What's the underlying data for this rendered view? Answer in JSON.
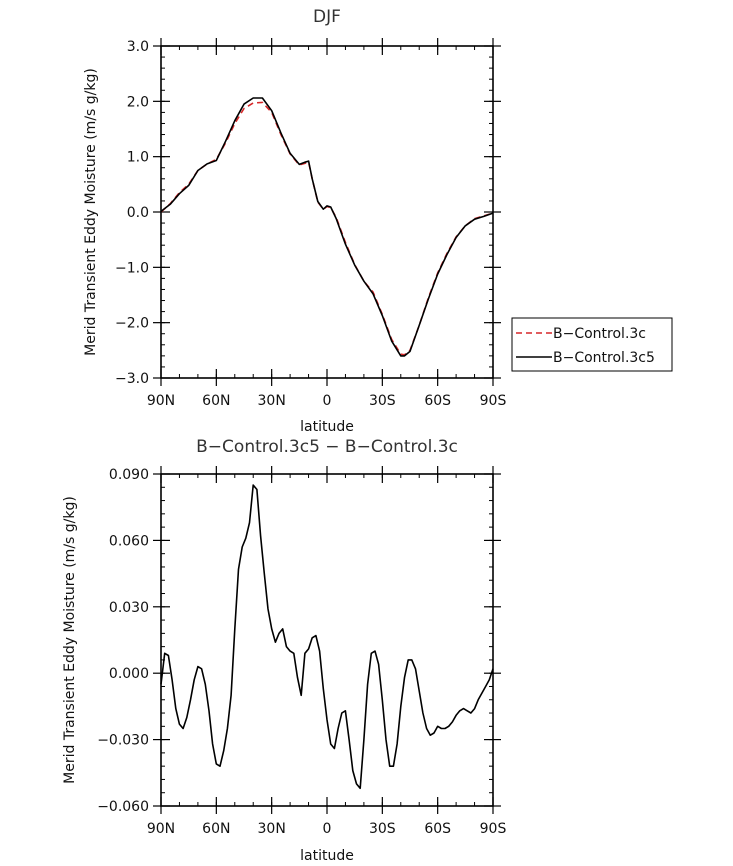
{
  "chart_data": [
    {
      "type": "line",
      "title": "DJF",
      "xlabel": "latitude",
      "ylabel": "Merid Transient Eddy Moisture (m/s g/kg)",
      "xlim": [
        -90,
        90
      ],
      "ylim": [
        -3.0,
        3.0
      ],
      "x_ticks": [
        -90,
        -60,
        -30,
        0,
        30,
        60,
        90
      ],
      "x_tick_labels": [
        "90N",
        "60N",
        "30N",
        "0",
        "30S",
        "60S",
        "90S"
      ],
      "y_ticks": [
        -3,
        -2,
        -1,
        0,
        1,
        2,
        3
      ],
      "y_tick_labels": [
        "−3.0",
        "−2.0",
        "−1.0",
        "0.0",
        "1.0",
        "2.0",
        "3.0"
      ],
      "legend_position": "right",
      "series": [
        {
          "name": "B−Control.3c",
          "color": "#d62728",
          "dash": "dashed",
          "x": [
            -90,
            -85,
            -80,
            -75,
            -70,
            -65,
            -60,
            -55,
            -50,
            -45,
            -40,
            -35,
            -30,
            -25,
            -20,
            -15,
            -12,
            -10,
            -8,
            -5,
            -2,
            0,
            2,
            5,
            10,
            15,
            20,
            25,
            30,
            35,
            40,
            42,
            45,
            50,
            55,
            60,
            65,
            70,
            75,
            80,
            85,
            90
          ],
          "y": [
            0.0,
            0.15,
            0.35,
            0.5,
            0.75,
            0.87,
            0.95,
            1.25,
            1.6,
            1.87,
            1.97,
            1.98,
            1.8,
            1.4,
            1.05,
            0.85,
            0.88,
            0.9,
            0.6,
            0.18,
            0.05,
            0.1,
            0.08,
            -0.1,
            -0.55,
            -0.95,
            -1.25,
            -1.45,
            -1.85,
            -2.3,
            -2.57,
            -2.58,
            -2.5,
            -2.05,
            -1.55,
            -1.1,
            -0.75,
            -0.45,
            -0.25,
            -0.12,
            -0.07,
            -0.02
          ]
        },
        {
          "name": "B−Control.3c5",
          "color": "#000000",
          "dash": "solid",
          "x": [
            -90,
            -85,
            -80,
            -75,
            -70,
            -65,
            -60,
            -55,
            -50,
            -45,
            -40,
            -35,
            -30,
            -25,
            -20,
            -15,
            -12,
            -10,
            -8,
            -5,
            -2,
            0,
            2,
            5,
            10,
            15,
            20,
            25,
            30,
            35,
            40,
            42,
            45,
            50,
            55,
            60,
            65,
            70,
            75,
            80,
            85,
            90
          ],
          "y": [
            0.01,
            0.14,
            0.33,
            0.48,
            0.75,
            0.87,
            0.93,
            1.28,
            1.65,
            1.95,
            2.06,
            2.06,
            1.83,
            1.43,
            1.06,
            0.86,
            0.9,
            0.92,
            0.6,
            0.19,
            0.05,
            0.11,
            0.09,
            -0.12,
            -0.58,
            -0.96,
            -1.25,
            -1.48,
            -1.87,
            -2.33,
            -2.6,
            -2.6,
            -2.52,
            -2.05,
            -1.57,
            -1.12,
            -0.77,
            -0.46,
            -0.25,
            -0.13,
            -0.08,
            -0.02
          ]
        }
      ]
    },
    {
      "type": "line",
      "title": "B−Control.3c5 − B−Control.3c",
      "xlabel": "latitude",
      "ylabel": "Merid Transient Eddy Moisture (m/s g/kg)",
      "xlim": [
        -90,
        90
      ],
      "ylim": [
        -0.06,
        0.09
      ],
      "x_ticks": [
        -90,
        -60,
        -30,
        0,
        30,
        60,
        90
      ],
      "x_tick_labels": [
        "90N",
        "60N",
        "30N",
        "0",
        "30S",
        "60S",
        "90S"
      ],
      "y_ticks": [
        -0.06,
        -0.03,
        0.0,
        0.03,
        0.06,
        0.09
      ],
      "y_tick_labels": [
        "−0.060",
        "−0.030",
        "0.000",
        "0.030",
        "0.060",
        "0.090"
      ],
      "series": [
        {
          "color": "#000000",
          "x": [
            -90,
            -88,
            -86,
            -84,
            -82,
            -80,
            -78,
            -76,
            -74,
            -72,
            -70,
            -68,
            -66,
            -64,
            -62,
            -60,
            -58,
            -56,
            -54,
            -52,
            -50,
            -48,
            -46,
            -44,
            -42,
            -40,
            -38,
            -36,
            -34,
            -32,
            -30,
            -28,
            -26,
            -24,
            -22,
            -20,
            -18,
            -16,
            -14,
            -12,
            -10,
            -8,
            -6,
            -4,
            -2,
            0,
            2,
            4,
            6,
            8,
            10,
            12,
            14,
            16,
            18,
            20,
            22,
            24,
            26,
            28,
            30,
            32,
            34,
            36,
            38,
            40,
            42,
            44,
            46,
            48,
            50,
            52,
            54,
            56,
            58,
            60,
            62,
            64,
            66,
            68,
            70,
            72,
            74,
            76,
            78,
            80,
            82,
            84,
            86,
            88,
            90
          ],
          "y": [
            -0.005,
            0.009,
            0.008,
            -0.003,
            -0.016,
            -0.023,
            -0.025,
            -0.02,
            -0.012,
            -0.003,
            0.003,
            0.002,
            -0.005,
            -0.017,
            -0.032,
            -0.041,
            -0.042,
            -0.035,
            -0.025,
            -0.01,
            0.02,
            0.047,
            0.057,
            0.061,
            0.068,
            0.085,
            0.083,
            0.062,
            0.045,
            0.029,
            0.02,
            0.014,
            0.018,
            0.02,
            0.012,
            0.01,
            0.009,
            -0.002,
            -0.01,
            0.009,
            0.011,
            0.016,
            0.017,
            0.01,
            -0.007,
            -0.021,
            -0.032,
            -0.034,
            -0.025,
            -0.018,
            -0.017,
            -0.03,
            -0.044,
            -0.05,
            -0.052,
            -0.03,
            -0.005,
            0.009,
            0.01,
            0.004,
            -0.012,
            -0.03,
            -0.042,
            -0.042,
            -0.032,
            -0.015,
            -0.002,
            0.006,
            0.006,
            0.002,
            -0.008,
            -0.018,
            -0.025,
            -0.028,
            -0.027,
            -0.024,
            -0.025,
            -0.025,
            -0.024,
            -0.022,
            -0.019,
            -0.017,
            -0.016,
            -0.017,
            -0.018,
            -0.016,
            -0.012,
            -0.009,
            -0.006,
            -0.003,
            0.002
          ]
        }
      ]
    }
  ]
}
